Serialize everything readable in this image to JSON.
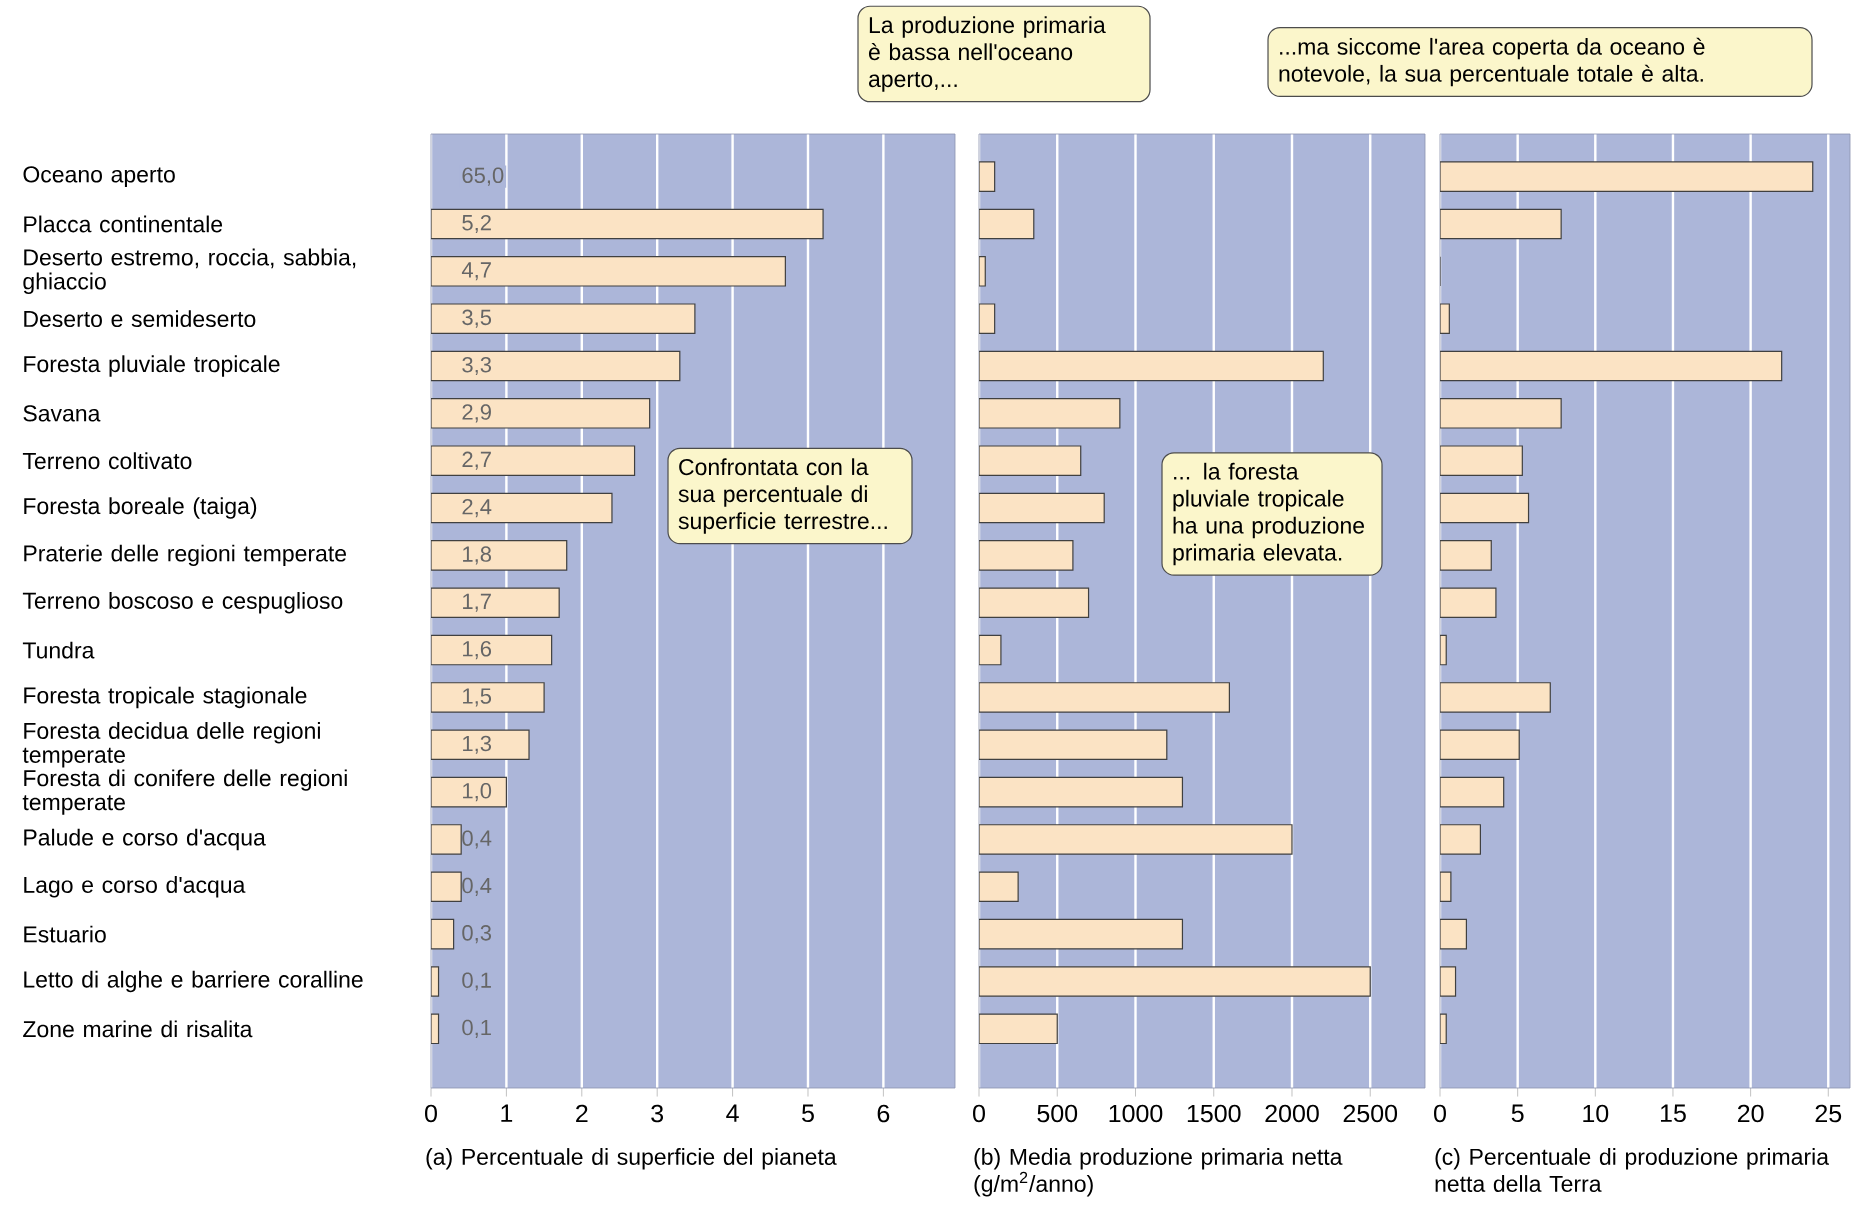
{
  "chart_data": [
    {
      "type": "bar",
      "orientation": "horizontal",
      "categories": [
        "Oceano aperto",
        "Placca continentale",
        "Deserto estremo, roccia, sabbia, ghiaccio",
        "Deserto e semideserto",
        "Foresta pluviale tropicale",
        "Savana",
        "Terreno coltivato",
        "Foresta boreale (taiga)",
        "Praterie delle regioni temperate",
        "Terreno boscoso e cespuglioso",
        "Tundra",
        "Foresta tropicale stagionale",
        "Foresta decidua delle regioni temperate",
        "Foresta di conifere delle regioni temperate",
        "Palude e corso d'acqua",
        "Lago e corso d'acqua",
        "Estuario",
        "Letto di alghe e barriere coralline",
        "Zone marine di risalita"
      ],
      "values": [
        null,
        5.2,
        4.7,
        3.5,
        3.3,
        2.9,
        2.7,
        2.4,
        1.8,
        1.7,
        1.6,
        1.5,
        1.3,
        1.0,
        0.4,
        0.4,
        0.3,
        0.1,
        0.1
      ],
      "value_labels": [
        "65,0",
        "5,2",
        "4,7",
        "3,5",
        "3,3",
        "2,9",
        "2,7",
        "2,4",
        "1,8",
        "1,7",
        "1,6",
        "1,5",
        "1,3",
        "1,0",
        "0,4",
        "0,4",
        "0,3",
        "0,1",
        "0,1"
      ],
      "color": "#fbe3c4",
      "xlim": [
        0,
        6.95
      ],
      "xticks": [
        0,
        1,
        2,
        3,
        4,
        5,
        6
      ],
      "grid": "x",
      "xlabel": "(a) Percentuale di superficie del pianeta",
      "annotations": [
        "Confrontata con la sua percentuale di superficie terrestre..."
      ]
    },
    {
      "type": "bar",
      "orientation": "horizontal",
      "categories": [
        null,
        null,
        null,
        null,
        null,
        null,
        null,
        null,
        null,
        null,
        null,
        null,
        null,
        null,
        null,
        null,
        null,
        null,
        null
      ],
      "values": [
        100,
        350,
        40,
        100,
        2200,
        900,
        650,
        800,
        600,
        700,
        140,
        1600,
        1200,
        1300,
        2000,
        250,
        1300,
        2500,
        500
      ],
      "color": "#fbe3c4",
      "xlim": [
        0,
        2850
      ],
      "xticks": [
        0,
        500,
        1000,
        1500,
        2000,
        2500
      ],
      "grid": "x",
      "tick_labels": "x",
      "xlabel": "(b) Media produzione primaria netta (g/m$^{2}$/anno)",
      "annotations": [
        "La produzione primaria è bassa nell'oceano aperto,...",
        "... la foresta pluviale tropicale ha una produzione primaria elevata."
      ]
    },
    {
      "type": "bar",
      "orientation": "horizontal",
      "categories": [
        null,
        null,
        null,
        null,
        null,
        null,
        null,
        null,
        null,
        null,
        null,
        null,
        null,
        null,
        null,
        null,
        null,
        null,
        null
      ],
      "values": [
        24,
        7.8,
        0,
        0.6,
        22,
        7.8,
        5.3,
        5.7,
        3.3,
        3.6,
        0.4,
        7.1,
        5.1,
        4.1,
        2.6,
        0.7,
        1.7,
        1.0,
        0.4
      ],
      "color": "#fbe3c4",
      "xlim": [
        0,
        26.4
      ],
      "xticks": [
        0,
        5,
        10,
        15,
        20,
        25
      ],
      "grid": "x",
      "tick_labels": "x",
      "xlabel": "(c) Percentuale di produzione primaria netta della Terra",
      "annotations": [
        "...ma siccome l'area coperta da oceano è notevole, la sua percentuale totale è alta."
      ]
    }
  ]
}
